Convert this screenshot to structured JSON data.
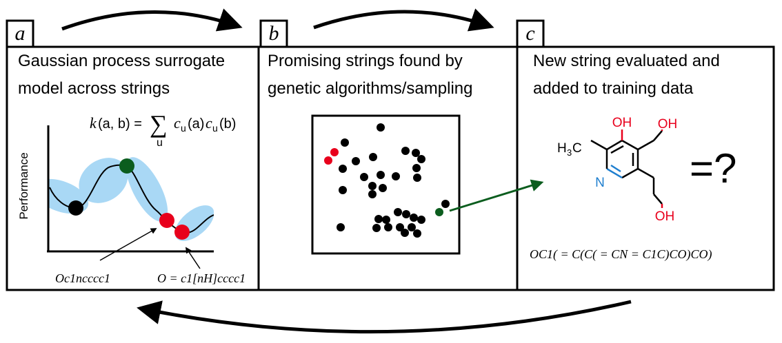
{
  "panels": [
    {
      "letter": "a",
      "title_lines": [
        "Gaussian process surrogate",
        "model across strings"
      ]
    },
    {
      "letter": "b",
      "title_lines": [
        "Promising strings found by",
        "genetic algorithms/sampling"
      ]
    },
    {
      "letter": "c",
      "title_lines": [
        "New string evaluated and",
        "added to training data"
      ]
    }
  ],
  "panel_a": {
    "kernel": {
      "k": "k",
      "args": "(a, b) =",
      "sum": "∑",
      "sub": "u",
      "c1": "c",
      "c1sub": "u",
      "c1arg": "(a)",
      "c2": "c",
      "c2sub": "u",
      "c2arg": "(b)"
    },
    "ylabel": "Performance",
    "string_left": "Oc1ncccc1",
    "string_right": "O = c1[nH]cccc1"
  },
  "panel_c": {
    "atoms": {
      "oh_top": "OH",
      "oh_right": "OH",
      "oh_bottom": "OH",
      "n": "N",
      "h3c": "H",
      "h3c_sub": "3",
      "h3c_c": "C"
    },
    "equals_q": "=?",
    "smiles": "OC1( = C(C( = CN = C1C)CO)CO)"
  },
  "colors": {
    "black": "#000000",
    "red": "#e8001c",
    "green": "#0b5d1e",
    "blue": "#a9d8f5",
    "atom_red": "#e8001c",
    "atom_blue": "#1f7fcf"
  }
}
